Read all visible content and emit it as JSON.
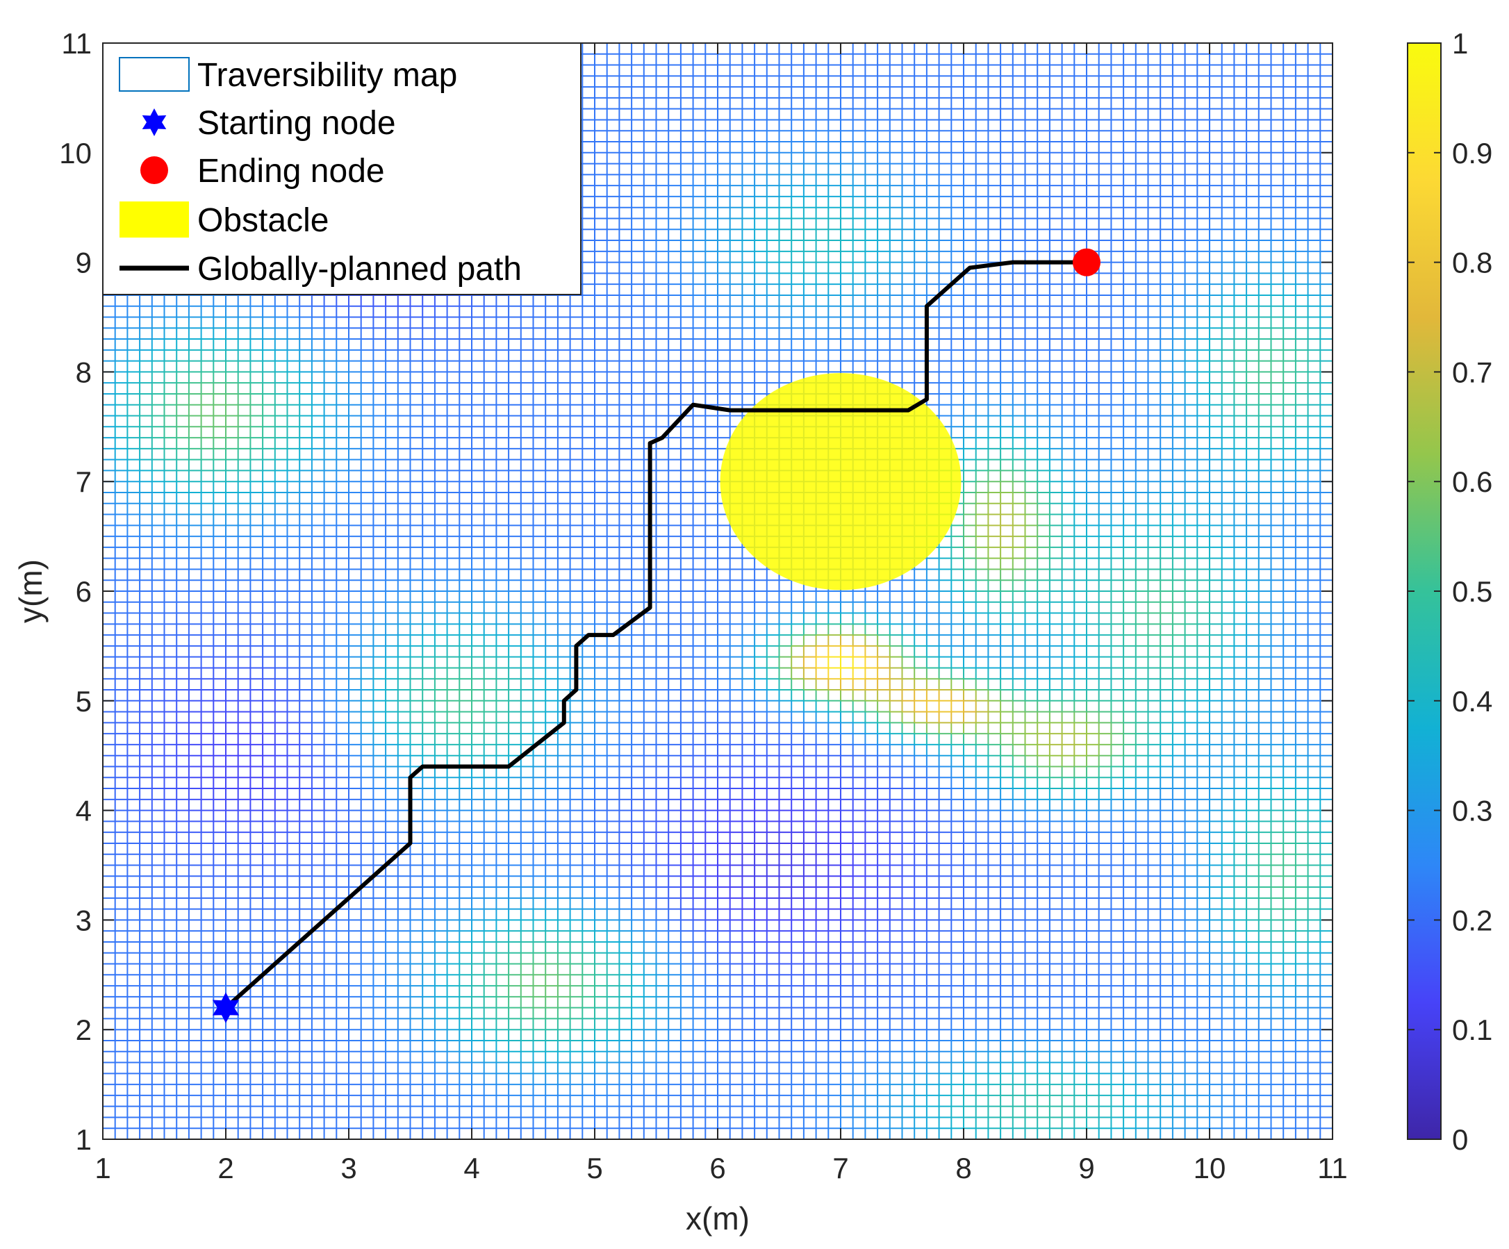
{
  "chart_data": {
    "type": "heatmap",
    "xlabel": "x(m)",
    "ylabel": "y(m)",
    "xlim": [
      1,
      11
    ],
    "ylim": [
      1,
      11
    ],
    "x_ticks": [
      "1",
      "2",
      "3",
      "4",
      "5",
      "6",
      "7",
      "8",
      "9",
      "10",
      "11"
    ],
    "y_ticks": [
      "1",
      "2",
      "3",
      "4",
      "5",
      "6",
      "7",
      "8",
      "9",
      "10",
      "11"
    ],
    "grid_resolution": 0.1,
    "colorbar": {
      "range": [
        0,
        1
      ],
      "ticks": [
        "0",
        "0.1",
        "0.2",
        "0.3",
        "0.4",
        "0.5",
        "0.6",
        "0.7",
        "0.8",
        "0.9",
        "1"
      ],
      "colormap": "parula",
      "colors": [
        "#3e26a8",
        "#4743f8",
        "#2e87f7",
        "#12b1d4",
        "#35c29a",
        "#94c64c",
        "#e2b83a",
        "#fcd934",
        "#f9fb0e"
      ]
    },
    "legend": {
      "placement": "top-left",
      "entries": [
        {
          "label": "Traversibility map",
          "symbol": "rect-outline",
          "color": "#0072bd"
        },
        {
          "label": "Starting node",
          "symbol": "star",
          "color": "#0000ff"
        },
        {
          "label": "Ending node",
          "symbol": "circle",
          "color": "#ff0000"
        },
        {
          "label": "Obstacle",
          "symbol": "rect-fill",
          "color": "#ffff00"
        },
        {
          "label": "Globally-planned path",
          "symbol": "line",
          "color": "#000000"
        }
      ]
    },
    "start_node": {
      "x": 2.0,
      "y": 2.2
    },
    "end_node": {
      "x": 9.0,
      "y": 9.0
    },
    "obstacle": {
      "cx": 7.0,
      "cy": 7.0,
      "rx": 0.98,
      "ry": 0.99,
      "color": "#ffff00"
    },
    "path": [
      [
        2.0,
        2.2
      ],
      [
        2.8,
        3.0
      ],
      [
        3.5,
        3.7
      ],
      [
        3.5,
        4.3
      ],
      [
        3.6,
        4.4
      ],
      [
        4.3,
        4.4
      ],
      [
        4.75,
        4.8
      ],
      [
        4.75,
        5.0
      ],
      [
        4.85,
        5.1
      ],
      [
        4.85,
        5.5
      ],
      [
        4.95,
        5.6
      ],
      [
        5.15,
        5.6
      ],
      [
        5.45,
        5.85
      ],
      [
        5.45,
        7.35
      ],
      [
        5.55,
        7.4
      ],
      [
        5.8,
        7.7
      ],
      [
        6.1,
        7.65
      ],
      [
        7.55,
        7.65
      ],
      [
        7.7,
        7.75
      ],
      [
        7.7,
        8.6
      ],
      [
        8.05,
        8.95
      ],
      [
        8.4,
        9.0
      ],
      [
        9.0,
        9.0
      ]
    ],
    "traversibility_field": {
      "base": 0.22,
      "bumps": [
        {
          "x": 7.0,
          "y": 5.35,
          "sx": 0.55,
          "sy": 0.35,
          "amp": 0.72
        },
        {
          "x": 7.8,
          "y": 4.95,
          "sx": 0.55,
          "sy": 0.3,
          "amp": 0.55
        },
        {
          "x": 8.8,
          "y": 4.6,
          "sx": 0.7,
          "sy": 0.45,
          "amp": 0.42
        },
        {
          "x": 8.3,
          "y": 6.6,
          "sx": 0.5,
          "sy": 0.8,
          "amp": 0.45
        },
        {
          "x": 9.6,
          "y": 5.8,
          "sx": 0.8,
          "sy": 1.0,
          "amp": 0.3
        },
        {
          "x": 1.9,
          "y": 7.6,
          "sx": 0.9,
          "sy": 0.8,
          "amp": 0.35
        },
        {
          "x": 3.9,
          "y": 5.0,
          "sx": 0.9,
          "sy": 0.8,
          "amp": 0.3
        },
        {
          "x": 4.6,
          "y": 2.4,
          "sx": 0.9,
          "sy": 0.7,
          "amp": 0.35
        },
        {
          "x": 10.6,
          "y": 3.4,
          "sx": 0.6,
          "sy": 1.0,
          "amp": 0.3
        },
        {
          "x": 10.5,
          "y": 8.0,
          "sx": 0.7,
          "sy": 0.9,
          "amp": 0.3
        },
        {
          "x": 6.8,
          "y": 9.2,
          "sx": 0.9,
          "sy": 0.7,
          "amp": 0.2
        },
        {
          "x": 8.6,
          "y": 1.3,
          "sx": 1.2,
          "sy": 0.5,
          "amp": 0.25
        },
        {
          "x": 3.2,
          "y": 9.2,
          "sx": 0.9,
          "sy": 0.7,
          "amp": -0.12
        },
        {
          "x": 6.5,
          "y": 3.5,
          "sx": 1.2,
          "sy": 1.0,
          "amp": -0.12
        },
        {
          "x": 2.2,
          "y": 4.5,
          "sx": 1.0,
          "sy": 1.0,
          "amp": -0.1
        }
      ]
    }
  }
}
